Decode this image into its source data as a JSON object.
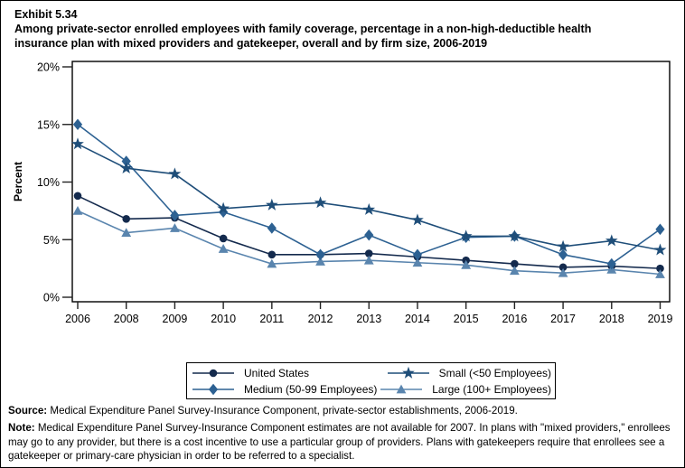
{
  "header": {
    "exhibit": "Exhibit 5.34",
    "title_line1": "Among private-sector enrolled employees with family coverage, percentage in a non-high-deductible health",
    "title_line2": "insurance plan with mixed providers and gatekeeper, overall and by firm size, 2006-2019"
  },
  "chart_data": {
    "type": "line",
    "ylabel": "Percent",
    "ylim": [
      0,
      20
    ],
    "ytick_values": [
      0,
      5,
      10,
      15,
      20
    ],
    "ytick_labels": [
      "0%",
      "5%",
      "10%",
      "15%",
      "20%"
    ],
    "x_categories": [
      "2006",
      "2008",
      "2009",
      "2010",
      "2011",
      "2012",
      "2013",
      "2014",
      "2015",
      "2016",
      "2017",
      "2018",
      "2019"
    ],
    "grid": "off",
    "legend_position": "bottom-box",
    "series": [
      {
        "name": "United States",
        "marker": "circle",
        "color": "#142a4d",
        "values": [
          8.8,
          6.8,
          6.9,
          5.1,
          3.7,
          3.7,
          3.8,
          3.5,
          3.2,
          2.9,
          2.6,
          2.7,
          2.5
        ]
      },
      {
        "name": "Medium (50-99 Employees)",
        "marker": "diamond",
        "color": "#2d6192",
        "values": [
          15.0,
          11.8,
          7.1,
          7.4,
          6.0,
          3.7,
          5.4,
          3.7,
          5.2,
          5.3,
          3.7,
          2.9,
          5.9
        ]
      },
      {
        "name": "Small (<50 Employees)",
        "marker": "star",
        "color": "#1f4e79",
        "values": [
          13.3,
          11.2,
          10.7,
          7.7,
          8.0,
          8.2,
          7.6,
          6.7,
          5.3,
          5.3,
          4.4,
          4.9,
          4.1
        ]
      },
      {
        "name": "Large (100+ Employees)",
        "marker": "triangle",
        "color": "#5a85ae",
        "values": [
          7.5,
          5.6,
          6.0,
          4.2,
          2.9,
          3.1,
          3.2,
          3.0,
          2.8,
          2.3,
          2.1,
          2.4,
          2.0
        ]
      }
    ]
  },
  "legend": {
    "rows": [
      [
        0,
        2
      ],
      [
        1,
        3
      ]
    ]
  },
  "footer": {
    "source_label": "Source:",
    "source_text": "Medical Expenditure Panel Survey-Insurance Component, private-sector establishments, 2006-2019.",
    "note_label": "Note:",
    "note_text": "Medical Expenditure Panel Survey-Insurance Component estimates are not available for 2007. In plans with \"mixed providers,\" enrollees may go to any provider, but there is a cost incentive to use a particular group of providers. Plans with gatekeepers require that enrollees see a gatekeeper or primary-care physician in order to be referred to a specialist."
  }
}
